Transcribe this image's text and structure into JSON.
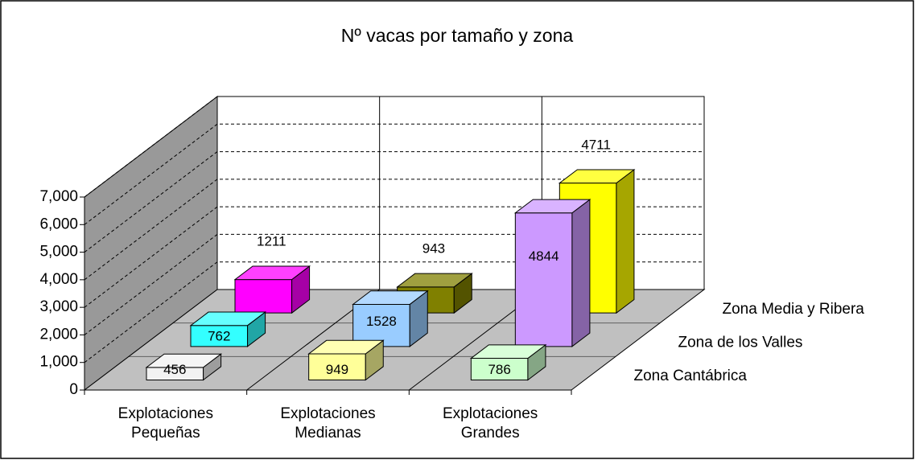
{
  "chart_data": {
    "type": "bar3d",
    "title": "Nº vacas por tamaño y zona",
    "categories": [
      "Explotaciones Pequeñas",
      "Explotaciones Medianas",
      "Explotaciones Grandes"
    ],
    "series": [
      {
        "name": "Zona Cantábrica",
        "values": [
          456,
          949,
          786
        ],
        "colors": [
          "#f2f2f2",
          "#ffff99",
          "#ccffcc"
        ]
      },
      {
        "name": "Zona de los Valles",
        "values": [
          762,
          1528,
          4844
        ],
        "colors": [
          "#33ffff",
          "#99ccff",
          "#cc99ff"
        ]
      },
      {
        "name": "Zona Media y Ribera",
        "values": [
          1211,
          943,
          4711
        ],
        "colors": [
          "#ff00ff",
          "#808000",
          "#ffff00"
        ]
      }
    ],
    "ylim": [
      0,
      7000
    ],
    "yticks": [
      0,
      {
        "value": 1000,
        "label": "1,000"
      },
      {
        "value": 2000,
        "label": "2,000"
      },
      {
        "value": 3000,
        "label": "3,000"
      },
      {
        "value": 4000,
        "label": "4,000"
      },
      {
        "value": 5000,
        "label": "5,000"
      },
      {
        "value": 6000,
        "label": "6,000"
      },
      {
        "value": 7000,
        "label": "7,000"
      }
    ],
    "grid": true
  }
}
